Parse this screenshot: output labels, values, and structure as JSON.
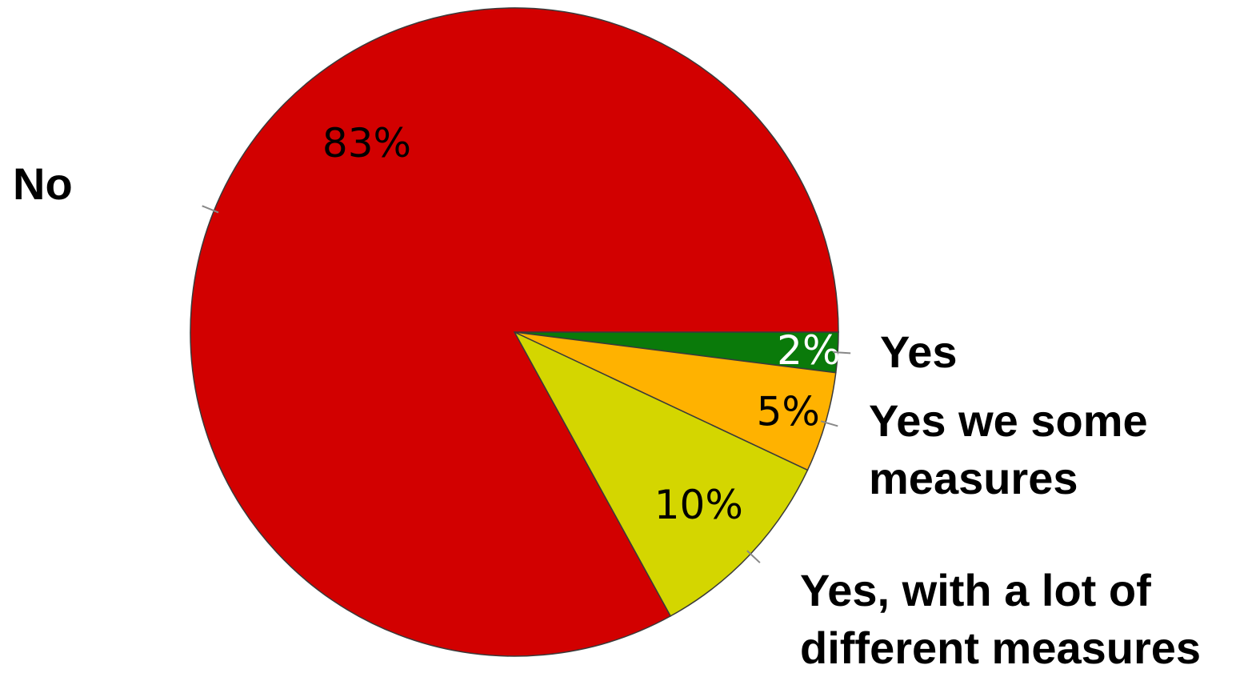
{
  "chart_data": {
    "type": "pie",
    "title": "",
    "slices": [
      {
        "label": "No",
        "value": 83,
        "display": "83%",
        "color": "#d20000",
        "label_color": "#000000"
      },
      {
        "label": "Yes",
        "value": 2,
        "display": "2%",
        "color": "#0a7a0a",
        "label_color": "#ffffff"
      },
      {
        "label": "Yes we some measures",
        "value": 5,
        "display": "5%",
        "color": "#ffb200",
        "label_color": "#000000"
      },
      {
        "label": "Yes, with a lot of different measures",
        "value": 10,
        "display": "10%",
        "color": "#d4d600",
        "label_color": "#000000"
      }
    ],
    "label_lines": {
      "no": "No",
      "yes": "Yes",
      "some_1": "Yes we some",
      "some_2": "measures",
      "lot_1": "Yes, with a lot of",
      "lot_2": "different measures"
    }
  }
}
